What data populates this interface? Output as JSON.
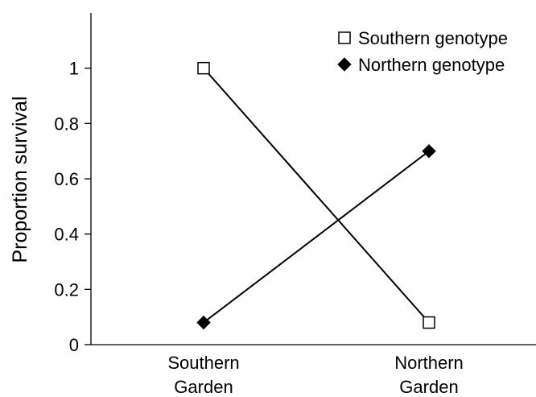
{
  "chart_data": {
    "type": "line",
    "title": "",
    "xlabel": "",
    "ylabel": "Proportion survival",
    "categories": [
      [
        "Southern",
        "Garden"
      ],
      [
        "Northern",
        "Garden"
      ]
    ],
    "ylim": [
      0,
      1.2
    ],
    "yticks": [
      0,
      0.2,
      0.4,
      0.6,
      0.8,
      1
    ],
    "ytick_labels": [
      "0",
      "0.2",
      "0.4",
      "0.6",
      "0.8",
      "1"
    ],
    "grid": false,
    "legend_position": "top-right",
    "series": [
      {
        "name": "Southern genotype",
        "marker": "open-square",
        "color": "#000000",
        "values": [
          1.0,
          0.08
        ]
      },
      {
        "name": "Northern genotype",
        "marker": "filled-diamond",
        "color": "#000000",
        "values": [
          0.08,
          0.7
        ]
      }
    ]
  }
}
